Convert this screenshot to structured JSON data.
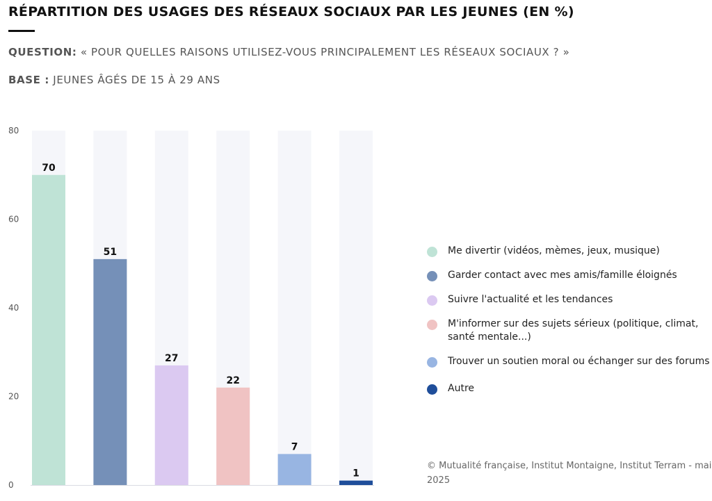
{
  "header": {
    "title": "RÉPARTITION DES USAGES DES RÉSEAUX SOCIAUX PAR LES JEUNES (EN %)",
    "question_label": "QUESTION:",
    "question_text": "« POUR QUELLES RAISONS UTILISEZ-VOUS PRINCIPALEMENT LES RÉSEAUX SOCIAUX ? »",
    "base_label": "BASE :",
    "base_text": "JEUNES ÂGÉS DE 15 À 29 ANS"
  },
  "chart_data": {
    "type": "bar",
    "title": "RÉPARTITION DES USAGES DES RÉSEAUX SOCIAUX PAR LES JEUNES (EN %)",
    "xlabel": "",
    "ylabel": "",
    "ylim": [
      0,
      80
    ],
    "yticks": [
      "0",
      "20",
      "40",
      "60",
      "80"
    ],
    "grid": false,
    "legend_position": "right",
    "categories": [
      "Me divertir (vidéos, mèmes, jeux, musique)",
      "Garder contact avec mes amis/famille éloignés",
      "Suivre l'actualité et les tendances",
      "M'informer sur des sujets sérieux (politique, climat, santé mentale...)",
      "Trouver un soutien moral ou échanger sur des forums",
      "Autre"
    ],
    "values": [
      70,
      51,
      27,
      22,
      7,
      1
    ],
    "value_labels": [
      "70",
      "51",
      "27",
      "22",
      "7",
      "1"
    ],
    "colors": [
      "#bfe3d6",
      "#7590b8",
      "#dbc9f1",
      "#f0c3c3",
      "#98b5e2",
      "#1f4e9a"
    ],
    "track_color": "#f5f6fa"
  },
  "legend": {
    "items": [
      {
        "label": "Me divertir (vidéos, mèmes, jeux, musique)",
        "color": "#bfe3d6"
      },
      {
        "label": "Garder contact avec mes amis/famille éloignés",
        "color": "#7590b8"
      },
      {
        "label": "Suivre l'actualité et les tendances",
        "color": "#dbc9f1"
      },
      {
        "label": "M'informer sur des sujets sérieux (politique, climat, santé mentale...)",
        "color": "#f0c3c3"
      },
      {
        "label": "Trouver un soutien moral ou échanger sur des forums",
        "color": "#98b5e2"
      },
      {
        "label": "Autre",
        "color": "#1f4e9a"
      }
    ]
  },
  "source": "© Mutualité française, Institut Montaigne, Institut Terram - mai 2025"
}
